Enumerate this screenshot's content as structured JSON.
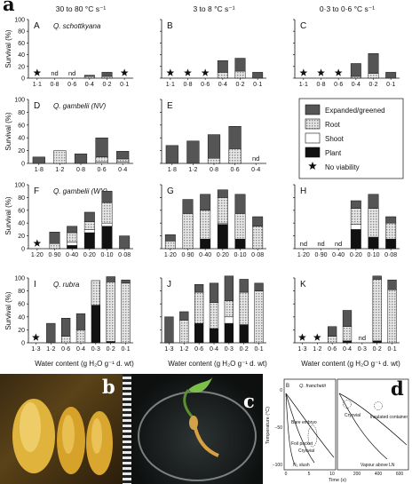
{
  "figure_label": "a",
  "col_headers": [
    "30 to 80 °C s⁻¹",
    "3 to 8 °C s⁻¹",
    "0·3 to 0·6 °C s⁻¹"
  ],
  "y_axis_label": "Survival (%)",
  "x_axis_label": "Water content (g H₂O g⁻¹ d. wt)",
  "legend": [
    {
      "name": "Expanded/greened",
      "color": "#555555"
    },
    {
      "name": "Root",
      "color": "#cfcfcf"
    },
    {
      "name": "Shoot",
      "color": "#ffffff"
    },
    {
      "name": "Plant",
      "color": "#111111"
    },
    {
      "name": "No viability",
      "marker": "star"
    }
  ],
  "chart_data": [
    {
      "panel": "A",
      "species": "Q. schottkyana",
      "categories": [
        "1·1",
        "0·8",
        "0·6",
        "0·4",
        "0·2",
        "0·1"
      ],
      "ylim": [
        0,
        100
      ],
      "ticks": [
        "0",
        "20",
        "40",
        "60",
        "80",
        "100"
      ],
      "series": {
        "Plant": [
          0,
          0,
          0,
          0,
          0,
          0
        ],
        "Shoot": [
          0,
          0,
          0,
          0,
          0,
          0
        ],
        "Root": [
          0,
          0,
          0,
          3,
          3,
          0
        ],
        "Expanded/greened": [
          0,
          0,
          0,
          2,
          7,
          0
        ]
      },
      "nd": [
        false,
        true,
        true,
        false,
        false,
        false
      ],
      "star": [
        true,
        false,
        false,
        false,
        false,
        true
      ]
    },
    {
      "panel": "B",
      "species": "",
      "categories": [
        "1·1",
        "0·8",
        "0·6",
        "0·4",
        "0·2",
        "0·1"
      ],
      "ylim": [
        0,
        100
      ],
      "ticks": [
        "0",
        "20",
        "40",
        "60",
        "80",
        "100"
      ],
      "series": {
        "Plant": [
          0,
          0,
          0,
          0,
          0,
          0
        ],
        "Shoot": [
          0,
          0,
          0,
          0,
          0,
          0
        ],
        "Root": [
          0,
          0,
          0,
          10,
          12,
          0
        ],
        "Expanded/greened": [
          0,
          0,
          0,
          20,
          22,
          10
        ]
      },
      "nd": [
        false,
        false,
        false,
        false,
        false,
        false
      ],
      "star": [
        true,
        true,
        true,
        false,
        false,
        false
      ]
    },
    {
      "panel": "C",
      "species": "",
      "categories": [
        "1·1",
        "0·8",
        "0·6",
        "0·4",
        "0·2",
        "0·1"
      ],
      "ylim": [
        0,
        100
      ],
      "ticks": [
        "0",
        "20",
        "40",
        "60",
        "80",
        "100"
      ],
      "series": {
        "Plant": [
          0,
          0,
          0,
          0,
          0,
          0
        ],
        "Shoot": [
          0,
          0,
          0,
          0,
          0,
          0
        ],
        "Root": [
          0,
          0,
          0,
          3,
          8,
          0
        ],
        "Expanded/greened": [
          0,
          0,
          0,
          22,
          34,
          10
        ]
      },
      "nd": [
        false,
        false,
        false,
        false,
        false,
        false
      ],
      "star": [
        true,
        true,
        true,
        false,
        false,
        false
      ]
    },
    {
      "panel": "D",
      "species": "Q. gambelii (NV)",
      "categories": [
        "1·8",
        "1·2",
        "0·8",
        "0·6",
        "0·4"
      ],
      "ylim": [
        0,
        100
      ],
      "ticks": [
        "0",
        "20",
        "40",
        "60",
        "80",
        "100"
      ],
      "series": {
        "Plant": [
          0,
          0,
          0,
          0,
          0
        ],
        "Shoot": [
          0,
          0,
          0,
          2,
          2
        ],
        "Root": [
          0,
          20,
          0,
          8,
          5
        ],
        "Expanded/greened": [
          10,
          0,
          15,
          30,
          12
        ]
      },
      "nd": [
        false,
        false,
        false,
        false,
        false
      ],
      "star": [
        false,
        false,
        false,
        false,
        false
      ]
    },
    {
      "panel": "E",
      "species": "",
      "categories": [
        "1·8",
        "1·2",
        "0·8",
        "0·6",
        "0·4"
      ],
      "ylim": [
        0,
        100
      ],
      "ticks": [
        "0",
        "20",
        "40",
        "60",
        "80",
        "100"
      ],
      "series": {
        "Plant": [
          0,
          0,
          0,
          0,
          0
        ],
        "Shoot": [
          0,
          0,
          0,
          0,
          0
        ],
        "Root": [
          0,
          0,
          8,
          23,
          0
        ],
        "Expanded/greened": [
          28,
          35,
          37,
          35,
          0
        ]
      },
      "nd": [
        false,
        false,
        false,
        false,
        true
      ],
      "star": [
        false,
        false,
        false,
        false,
        false
      ]
    },
    {
      "panel": "F",
      "species": "Q. gambelii (WY)",
      "categories": [
        "1·20",
        "0·90",
        "0·40",
        "0·20",
        "0·10",
        "0·08"
      ],
      "ylim": [
        0,
        100
      ],
      "ticks": [
        "0",
        "20",
        "40",
        "60",
        "80",
        "100"
      ],
      "series": {
        "Plant": [
          0,
          0,
          5,
          25,
          35,
          0
        ],
        "Shoot": [
          0,
          0,
          5,
          5,
          5,
          0
        ],
        "Root": [
          0,
          8,
          15,
          12,
          32,
          0
        ],
        "Expanded/greened": [
          0,
          18,
          10,
          15,
          18,
          20
        ]
      },
      "nd": [
        false,
        false,
        false,
        false,
        false,
        false
      ],
      "star": [
        true,
        false,
        false,
        false,
        false,
        false
      ]
    },
    {
      "panel": "G",
      "species": "",
      "categories": [
        "1·20",
        "0·90",
        "0·40",
        "0·20",
        "0·10",
        "0·08"
      ],
      "ylim": [
        0,
        100
      ],
      "ticks": [
        "0",
        "20",
        "40",
        "60",
        "80",
        "100"
      ],
      "series": {
        "Plant": [
          0,
          0,
          15,
          38,
          15,
          0
        ],
        "Shoot": [
          0,
          0,
          0,
          2,
          0,
          0
        ],
        "Root": [
          12,
          55,
          45,
          40,
          40,
          35
        ],
        "Expanded/greened": [
          10,
          22,
          25,
          12,
          30,
          15
        ]
      },
      "nd": [
        false,
        false,
        false,
        false,
        false,
        false
      ],
      "star": [
        false,
        false,
        false,
        false,
        false,
        false
      ]
    },
    {
      "panel": "H",
      "species": "",
      "categories": [
        "1·20",
        "0·90",
        "0·40",
        "0·20",
        "0·10",
        "0·08"
      ],
      "ylim": [
        0,
        100
      ],
      "ticks": [
        "0",
        "20",
        "40",
        "60",
        "80",
        "100"
      ],
      "series": {
        "Plant": [
          0,
          0,
          0,
          30,
          18,
          15
        ],
        "Shoot": [
          0,
          0,
          0,
          8,
          0,
          0
        ],
        "Root": [
          0,
          0,
          0,
          25,
          45,
          25
        ],
        "Expanded/greened": [
          0,
          0,
          0,
          12,
          22,
          10
        ]
      },
      "nd": [
        true,
        true,
        true,
        false,
        false,
        false
      ],
      "star": [
        false,
        false,
        false,
        false,
        false,
        false
      ]
    },
    {
      "panel": "I",
      "species": "Q. rubra",
      "categories": [
        "1·3",
        "1·2",
        "0·6",
        "0·4",
        "0·3",
        "0·2",
        "0·1"
      ],
      "ylim": [
        0,
        100
      ],
      "ticks": [
        "0",
        "20",
        "40",
        "60",
        "80",
        "100"
      ],
      "series": {
        "Plant": [
          0,
          0,
          0,
          0,
          58,
          2,
          0
        ],
        "Shoot": [
          0,
          0,
          0,
          0,
          0,
          0,
          0
        ],
        "Root": [
          0,
          0,
          10,
          20,
          38,
          92,
          92
        ],
        "Expanded/greened": [
          0,
          30,
          28,
          25,
          0,
          8,
          5
        ]
      },
      "nd": [
        false,
        false,
        false,
        false,
        false,
        false,
        false
      ],
      "star": [
        true,
        false,
        false,
        false,
        false,
        false,
        false
      ]
    },
    {
      "panel": "J",
      "species": "",
      "categories": [
        "1·3",
        "1·2",
        "0·6",
        "0·4",
        "0·3",
        "0·2",
        "0·1"
      ],
      "ylim": [
        0,
        100
      ],
      "ticks": [
        "0",
        "20",
        "40",
        "60",
        "80",
        "100"
      ],
      "series": {
        "Plant": [
          0,
          0,
          30,
          22,
          30,
          28,
          0
        ],
        "Shoot": [
          0,
          0,
          0,
          0,
          10,
          0,
          0
        ],
        "Root": [
          0,
          35,
          48,
          40,
          25,
          50,
          80
        ],
        "Expanded/greened": [
          40,
          13,
          12,
          30,
          38,
          20,
          12
        ]
      },
      "nd": [
        false,
        false,
        false,
        false,
        false,
        false,
        false
      ],
      "star": [
        false,
        false,
        false,
        false,
        false,
        false,
        false
      ]
    },
    {
      "panel": "K",
      "species": "",
      "categories": [
        "1·3",
        "1·2",
        "0·6",
        "0·4",
        "0·3",
        "0·2",
        "0·1"
      ],
      "ylim": [
        0,
        100
      ],
      "ticks": [
        "0",
        "20",
        "40",
        "60",
        "80",
        "100"
      ],
      "series": {
        "Plant": [
          0,
          0,
          0,
          3,
          0,
          3,
          0
        ],
        "Shoot": [
          0,
          0,
          0,
          0,
          0,
          0,
          0
        ],
        "Root": [
          0,
          0,
          10,
          22,
          0,
          95,
          82
        ],
        "Expanded/greened": [
          0,
          0,
          15,
          25,
          0,
          5,
          15
        ]
      },
      "nd": [
        false,
        false,
        false,
        false,
        true,
        false,
        false
      ],
      "star": [
        true,
        true,
        false,
        false,
        false,
        false,
        false
      ]
    }
  ],
  "photos": {
    "b_label": "b",
    "c_label": "c",
    "d_label": "d",
    "d_panel": {
      "title": "Q. franchetii",
      "corner_label": "B",
      "ylabel": "Temperature (°C)",
      "xlabel": "Time (s)",
      "left_ticks_y": [
        "0",
        "−50",
        "−100"
      ],
      "left_ticks_x": [
        "0",
        "5",
        "10"
      ],
      "right_ticks_x": [
        "200",
        "400",
        "600"
      ],
      "labels": [
        "Bare embryo",
        "Foil packet",
        "Cryovial",
        "N₂ slush",
        "Cryovial",
        "Insulated container",
        "Vapour above LN"
      ]
    }
  }
}
